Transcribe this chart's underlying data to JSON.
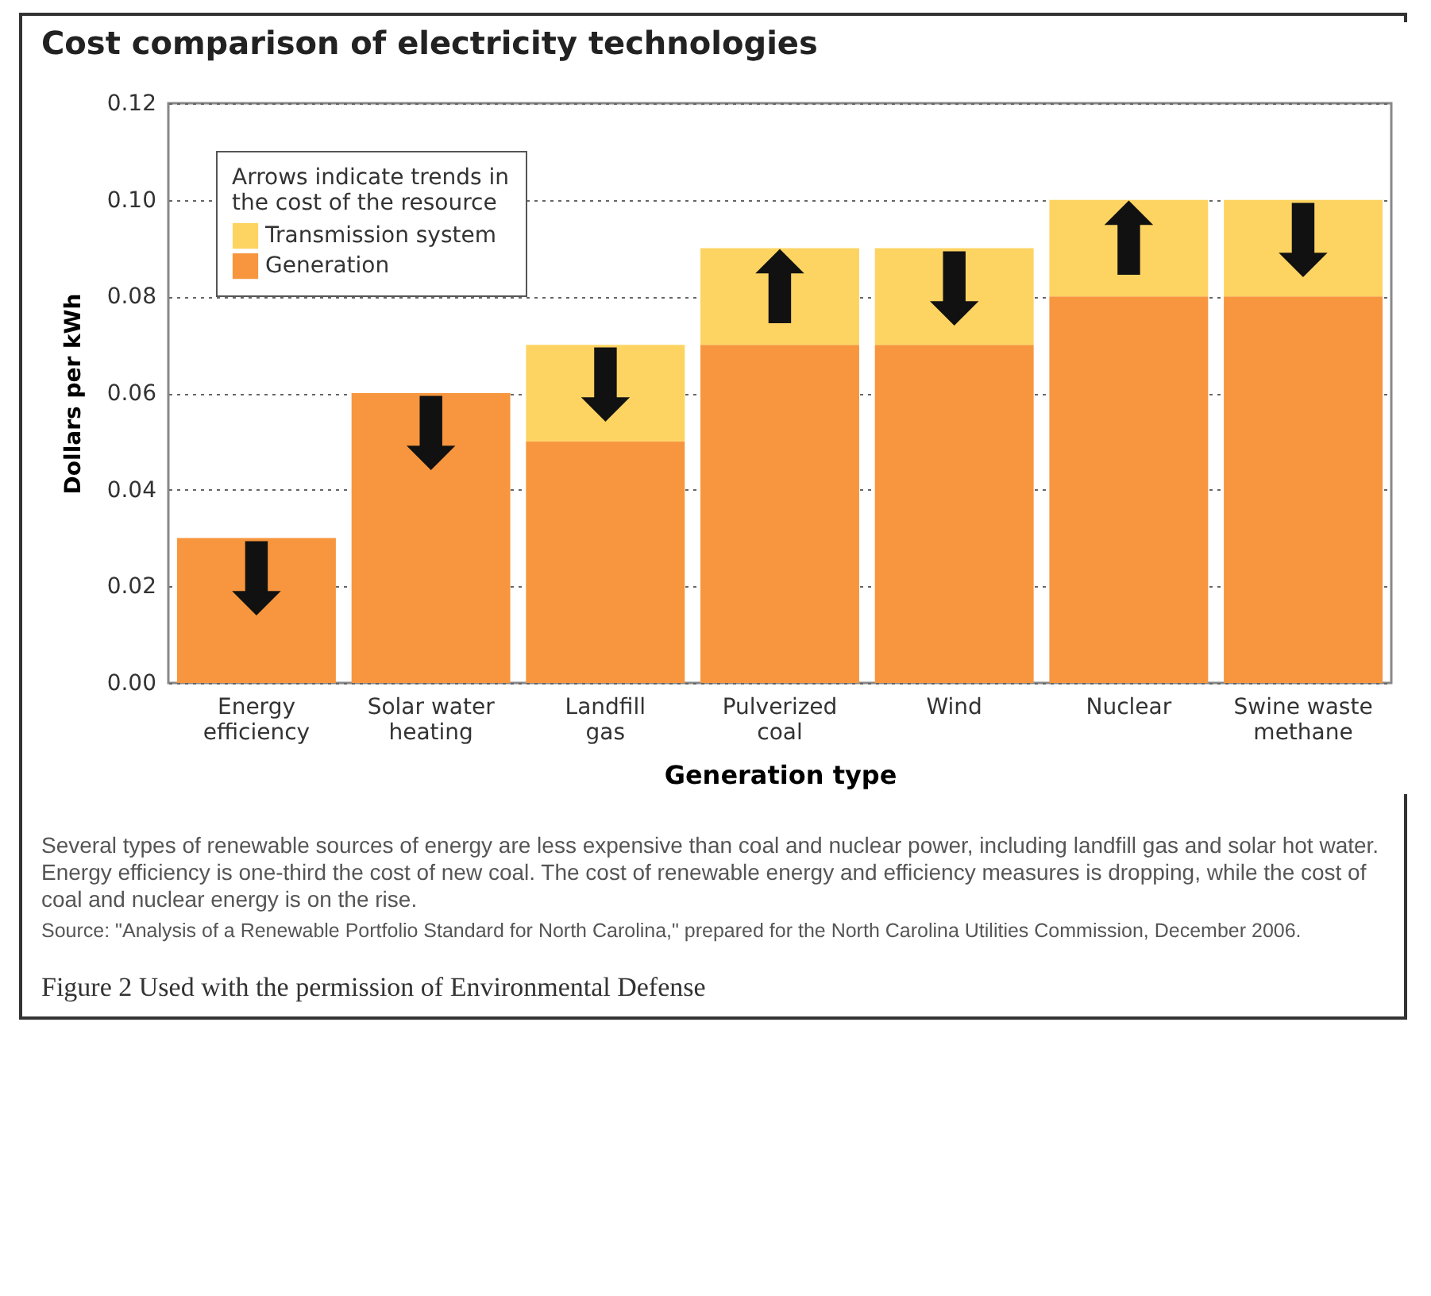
{
  "chart_data": {
    "type": "bar",
    "title": "Cost comparison of electricity technologies",
    "xlabel": "Generation type",
    "ylabel": "Dollars per kWh",
    "legend_title": "Arrows indicate trends in the cost of the resource",
    "categories": [
      "Energy efficiency",
      "Solar water heating",
      "Landfill gas",
      "Pulverized coal",
      "Wind",
      "Nuclear",
      "Swine waste methane"
    ],
    "series": [
      {
        "name": "Generation",
        "color": "#f7963e",
        "values": [
          0.03,
          0.06,
          0.05,
          0.07,
          0.07,
          0.08,
          0.08
        ]
      },
      {
        "name": "Transmission system",
        "color": "#fdd462",
        "values": [
          0,
          0,
          0.02,
          0.02,
          0.02,
          0.02,
          0.02
        ]
      }
    ],
    "stacked": true,
    "ylim": [
      0,
      0.12
    ],
    "yticks": [
      {
        "value": 0,
        "label": "0.00"
      },
      0.02,
      0.04,
      0.06,
      0.08,
      {
        "value": 0.1,
        "label": "0.10"
      },
      0.12
    ],
    "grid": "y",
    "legend": "top left",
    "annotations": [
      {
        "text": "⬇",
        "x": "Energy efficiency",
        "y": 0.03
      },
      {
        "text": "⬇",
        "x": "Solar water heating",
        "y": 0.06
      },
      {
        "text": "⬇",
        "x": "Landfill gas",
        "y": 0.07
      },
      {
        "text": "⬆",
        "x": "Pulverized coal",
        "y": 0.09
      },
      {
        "text": "⬇",
        "x": "Wind",
        "y": 0.09
      },
      {
        "text": "⬆",
        "x": "Nuclear",
        "y": 0.1
      },
      {
        "text": "⬇",
        "x": "Swine waste methane",
        "y": 0.1
      },
      "Several types of renewable sources of energy are less expensive than coal and nuclear power, including landfill gas and solar hot water. Energy efficiency is one-third the cost of new coal. The cost of renewable energy and efficiency measures is dropping, while the cost of coal and nuclear energy is on the rise.",
      "Source: \"Analysis of a Renewable Portfolio Standard for North Carolina,\" prepared for the North Carolina Utilities Commission, December 2006.",
      "Figure 2 Used with the permission of Environmental Defense"
    ]
  }
}
